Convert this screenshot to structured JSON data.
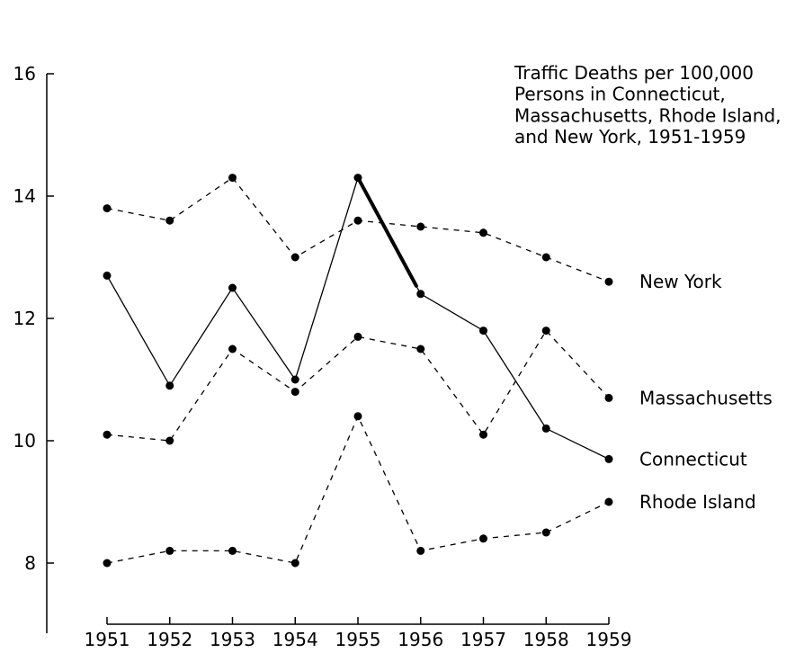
{
  "chart_data": {
    "type": "line",
    "title_lines": [
      "Traffic Deaths per 100,000",
      "Persons in Connecticut,",
      "Massachusetts, Rhode Island,",
      "and New York, 1951-1959"
    ],
    "xlabel": "",
    "ylabel": "",
    "x": [
      1951,
      1952,
      1953,
      1954,
      1955,
      1956,
      1957,
      1958,
      1959
    ],
    "x_tick_labels": [
      "1951",
      "1952",
      "1953",
      "1954",
      "1955",
      "1956",
      "1957",
      "1958",
      "1959"
    ],
    "y_ticks": [
      8,
      10,
      12,
      14,
      16
    ],
    "y_tick_labels": [
      "8",
      "10",
      "12",
      "14",
      "16"
    ],
    "ylim": [
      7,
      16
    ],
    "grid": false,
    "series": [
      {
        "name": "New York",
        "style": "dashed",
        "values": [
          13.8,
          13.6,
          14.3,
          13.0,
          13.6,
          13.5,
          13.4,
          13.0,
          12.6
        ]
      },
      {
        "name": "Massachusetts",
        "style": "dashed",
        "values": [
          10.1,
          10.0,
          11.5,
          10.8,
          11.7,
          11.5,
          10.1,
          11.8,
          10.7
        ]
      },
      {
        "name": "Connecticut",
        "style": "solid",
        "values": [
          12.7,
          10.9,
          12.5,
          11.0,
          14.3,
          12.4,
          11.8,
          10.2,
          9.7
        ],
        "highlight_segment": [
          1955,
          1956
        ]
      },
      {
        "name": "Rhode Island",
        "style": "dashed",
        "values": [
          8.0,
          8.2,
          8.2,
          8.0,
          10.4,
          8.2,
          8.4,
          8.5,
          9.0
        ]
      }
    ],
    "colors": {
      "ink": "#000000",
      "background": "#ffffff"
    }
  }
}
